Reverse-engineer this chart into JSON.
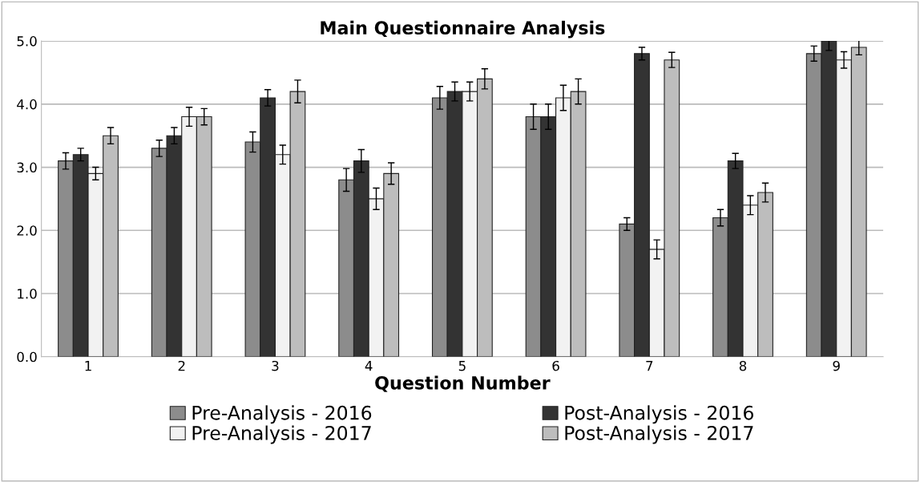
{
  "chart_data": {
    "type": "bar",
    "title": "Main Questionnaire Analysis",
    "xlabel": "Question Number",
    "categories": [
      "1",
      "2",
      "3",
      "4",
      "5",
      "6",
      "7",
      "8",
      "9"
    ],
    "series": [
      {
        "name": "Pre-Analysis - 2016",
        "color": "#8c8c8c",
        "values": [
          3.1,
          3.3,
          3.4,
          2.8,
          4.1,
          3.8,
          2.1,
          2.2,
          4.8
        ],
        "errors": [
          0.13,
          0.13,
          0.16,
          0.18,
          0.18,
          0.2,
          0.1,
          0.13,
          0.12
        ]
      },
      {
        "name": "Post-Analysis - 2016",
        "color": "#333333",
        "values": [
          3.2,
          3.5,
          4.1,
          3.1,
          4.2,
          3.8,
          4.8,
          3.1,
          5.0
        ],
        "errors": [
          0.1,
          0.13,
          0.13,
          0.18,
          0.15,
          0.2,
          0.1,
          0.12,
          0.15
        ]
      },
      {
        "name": "Pre-Analysis - 2017",
        "color": "#f2f2f2",
        "values": [
          2.9,
          3.8,
          3.2,
          2.5,
          4.2,
          4.1,
          1.7,
          2.4,
          4.7
        ],
        "errors": [
          0.1,
          0.15,
          0.15,
          0.17,
          0.15,
          0.2,
          0.15,
          0.15,
          0.13
        ]
      },
      {
        "name": "Post-Analysis - 2017",
        "color": "#bdbdbd",
        "values": [
          3.5,
          3.8,
          4.2,
          2.9,
          4.4,
          4.2,
          4.7,
          2.6,
          4.9
        ],
        "errors": [
          0.13,
          0.13,
          0.18,
          0.17,
          0.16,
          0.2,
          0.12,
          0.15,
          0.12
        ]
      }
    ],
    "ylim": [
      0,
      5
    ],
    "yticks": [
      {
        "value": 0,
        "label": "0.0"
      },
      {
        "value": 1,
        "label": "1.0"
      },
      {
        "value": 2,
        "label": "2.0"
      },
      {
        "value": 3,
        "label": "3.0"
      },
      {
        "value": 4,
        "label": "4.0"
      },
      {
        "value": 5,
        "label": "5.0"
      }
    ],
    "grid": "y",
    "legend": "bottom"
  }
}
